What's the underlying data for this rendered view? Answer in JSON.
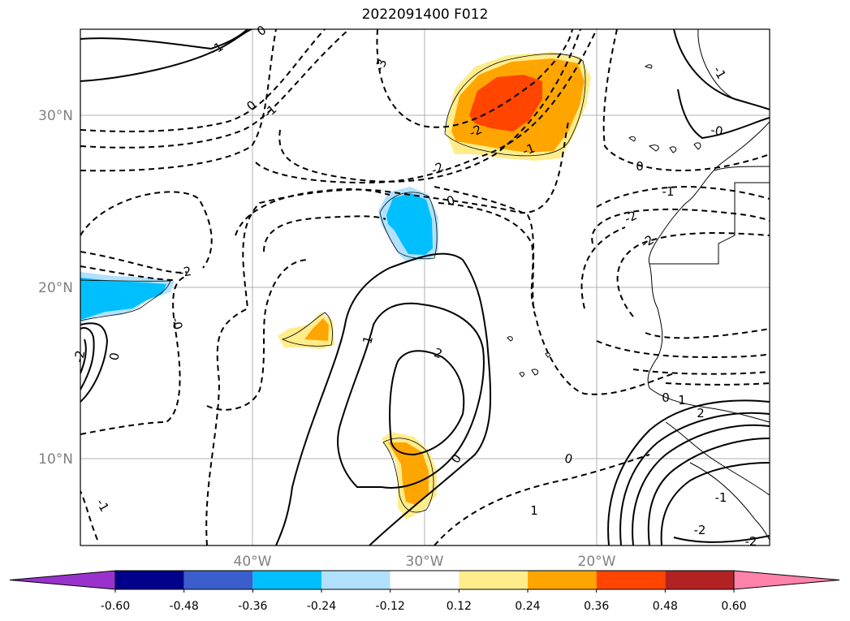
{
  "title": "2022091400 F012",
  "latitude_labels": [
    "30°N",
    "20°N",
    "10°N"
  ],
  "longitude_labels": [
    "40°W",
    "30°W",
    "20°W"
  ],
  "contour_labels": [
    "-1",
    "0",
    "-1",
    "-3",
    "0",
    "-1",
    "-2",
    "-2",
    "-2",
    "-1",
    "0",
    "0",
    "-1",
    "-2",
    "-2",
    "-2",
    "0",
    "-0",
    "1",
    "2",
    "0",
    "0",
    "-0",
    "1",
    "1",
    "0",
    "2",
    "-2",
    "-2",
    "-1",
    "-1"
  ],
  "colorbar": {
    "labels": [
      "-0.60",
      "-0.48",
      "-0.36",
      "-0.24",
      "-0.12",
      "0.12",
      "0.24",
      "0.36",
      "0.48",
      "0.60"
    ],
    "colors": [
      "#9932cc",
      "#00008b",
      "#3a5fcd",
      "#00bfff",
      "#b0e2ff",
      "#ffffff",
      "#ffec8b",
      "#ffa500",
      "#ff4500",
      "#b22222",
      "#ff82ab"
    ]
  },
  "anomaly_colors": {
    "strong_positive": "#ff4500",
    "positive": "#ffa500",
    "weak_positive": "#ffec8b",
    "negative": "#00bfff",
    "weak_negative": "#b0e2ff"
  }
}
